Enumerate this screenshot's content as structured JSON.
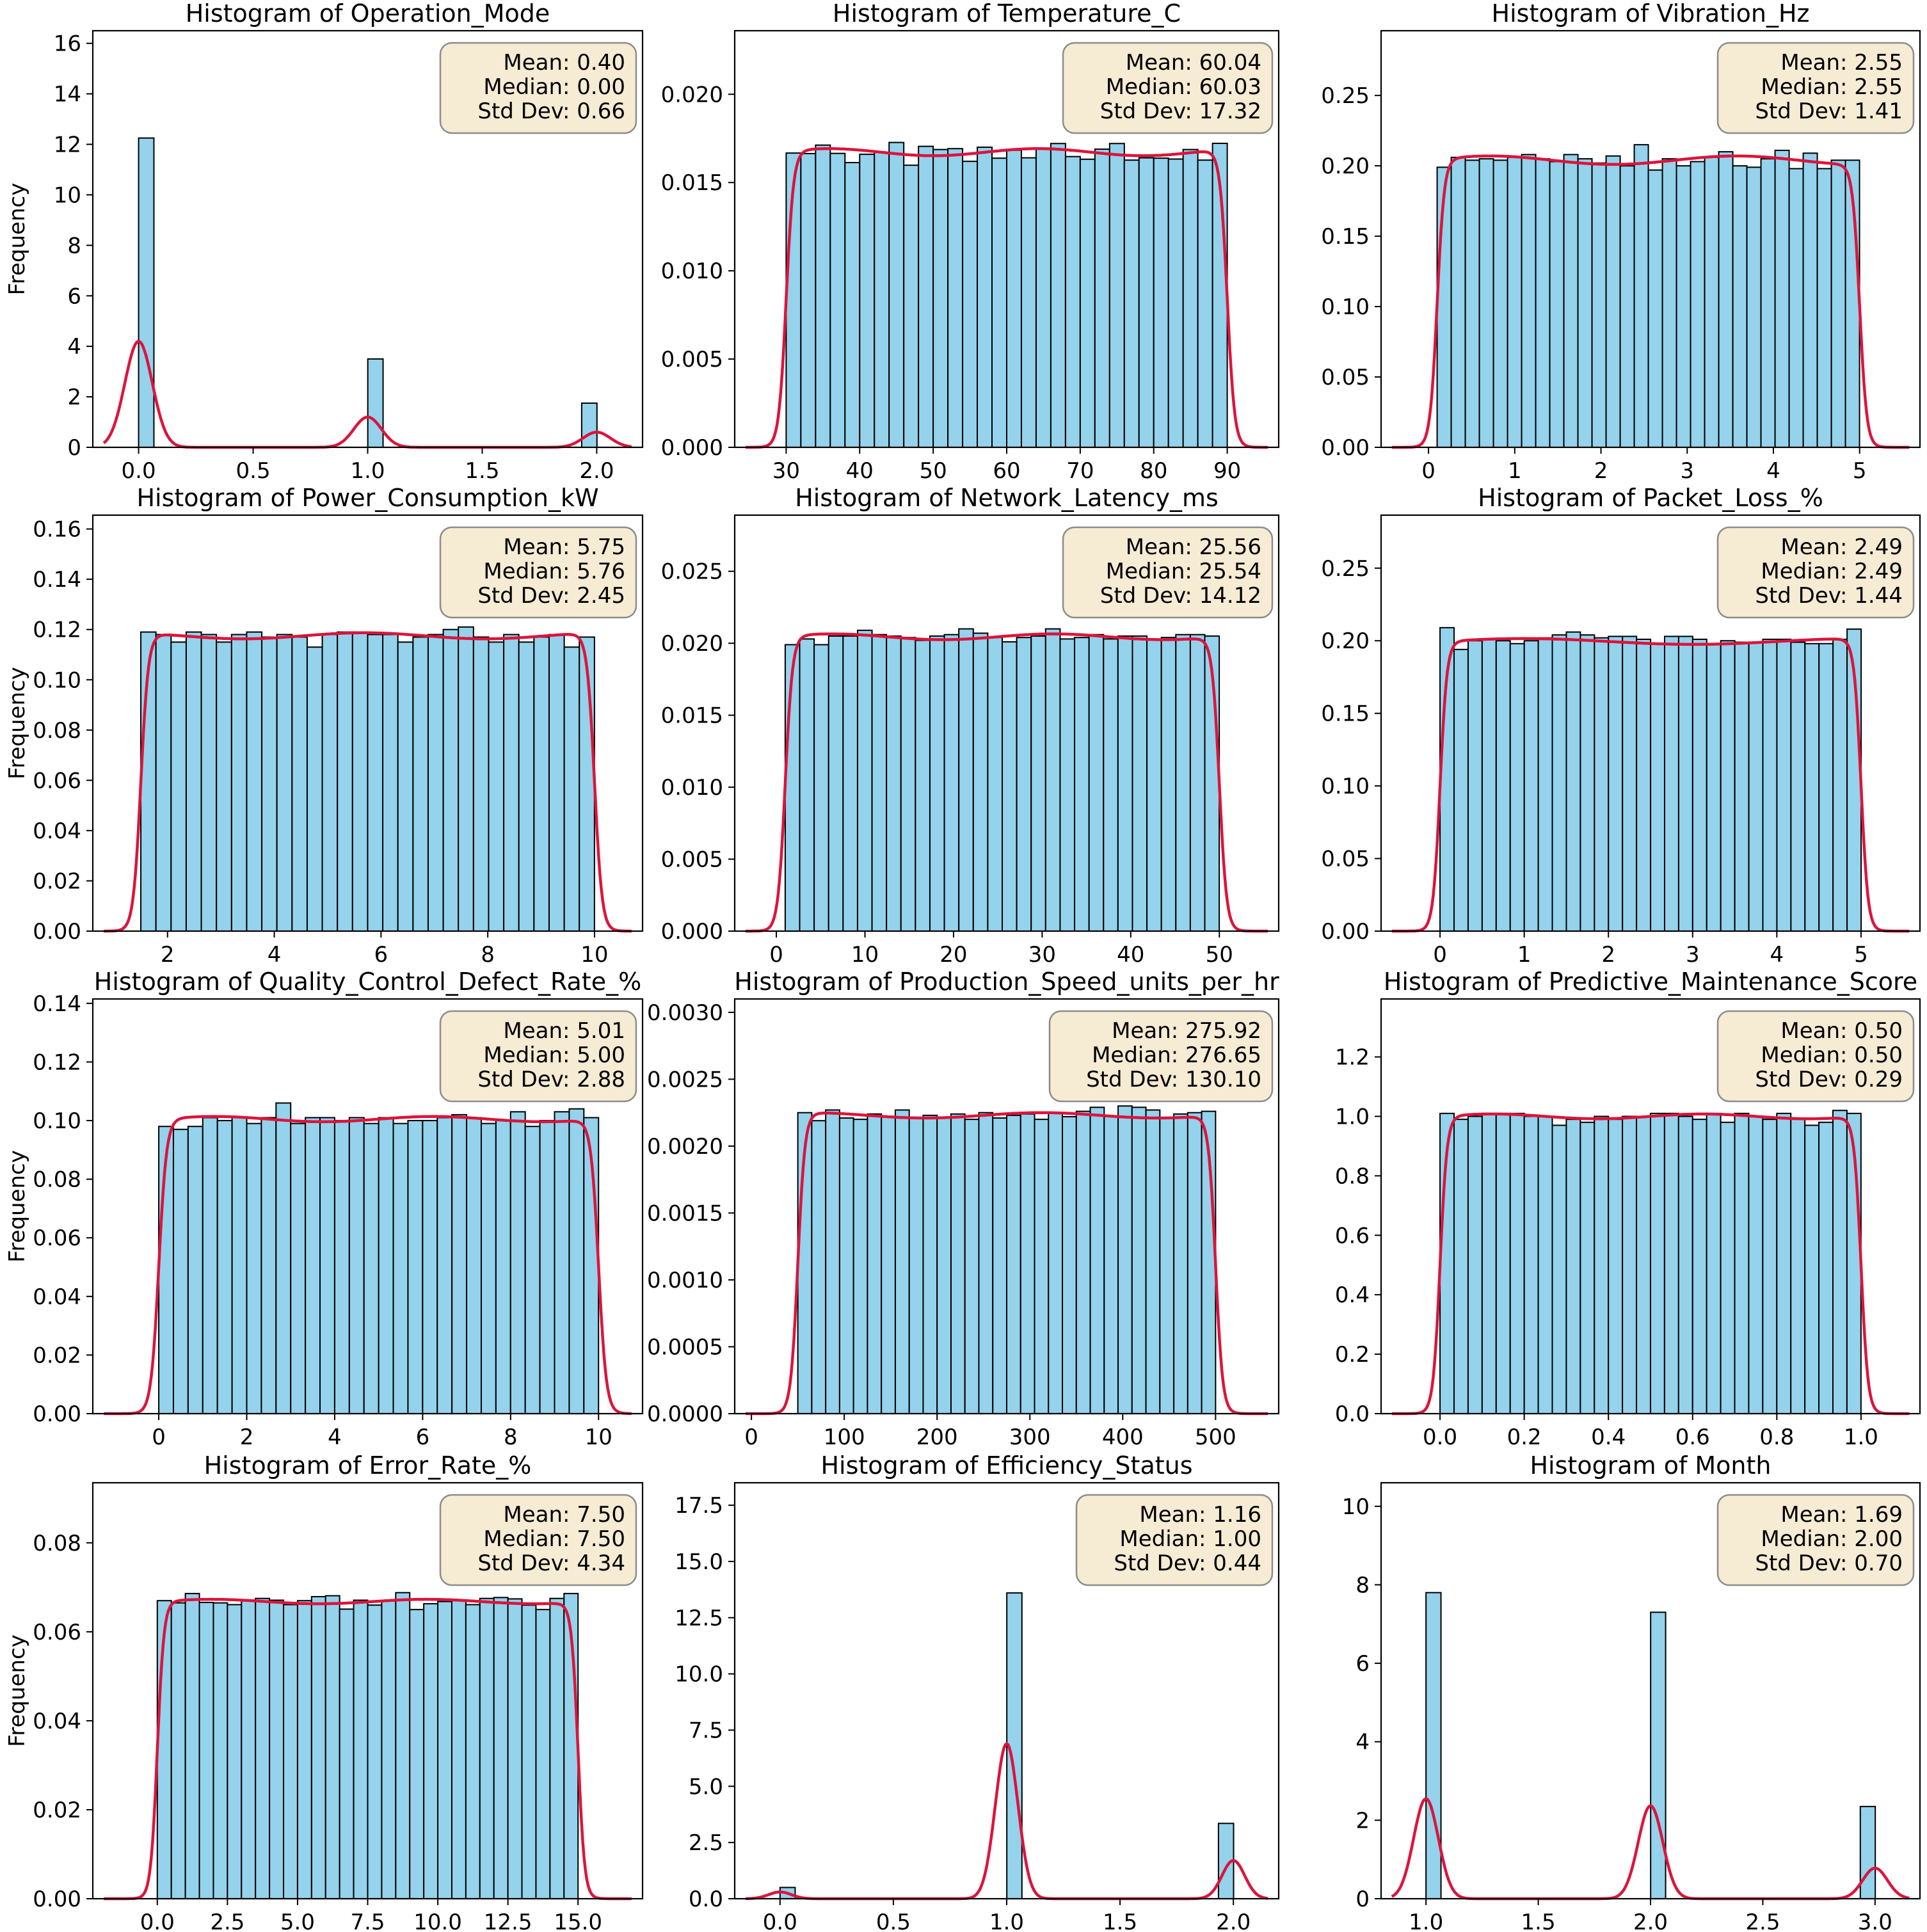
{
  "colors": {
    "bar_fill": "#95d2ec",
    "bar_edge": "#000000",
    "kde_line": "#dc143c",
    "stat_box_fill": "#f6ebd3",
    "stat_box_edge": "#8c8c8c"
  },
  "chart_data": [
    {
      "type": "bar",
      "title": "Histogram of Operation_Mode",
      "ylabel": "Frequency",
      "xlim": [
        -0.2,
        2.2
      ],
      "xticks": [
        0,
        0.5,
        1,
        1.5,
        2
      ],
      "xtick_labels": [
        "0.0",
        "0.5",
        "1.0",
        "1.5",
        "2.0"
      ],
      "ylim": [
        0,
        16.5
      ],
      "yticks": [
        0,
        2,
        4,
        6,
        8,
        10,
        12,
        14,
        16
      ],
      "ytick_labels": [
        "0",
        "2",
        "4",
        "6",
        "8",
        "10",
        "12",
        "14",
        "16"
      ],
      "bins": {
        "start": 0.0,
        "width": 0.0667,
        "values": [
          12.25,
          0,
          0,
          0,
          0,
          0,
          0,
          0,
          0,
          0,
          0,
          0,
          0,
          0,
          0,
          3.5,
          0,
          0,
          0,
          0,
          0,
          0,
          0,
          0,
          0,
          0,
          0,
          0,
          0,
          1.75
        ]
      },
      "kde": {
        "type": "peaks",
        "sigma": 0.06,
        "scale": 1,
        "peaks": [
          {
            "x": 0,
            "h": 4.2
          },
          {
            "x": 1,
            "h": 1.2
          },
          {
            "x": 2,
            "h": 0.6
          }
        ]
      },
      "stats": {
        "mean": "Mean: 0.40",
        "median": "Median: 0.00",
        "std": "Std Dev: 0.66"
      }
    },
    {
      "type": "bar",
      "title": "Histogram of Temperature_C",
      "ylabel": "",
      "xlim": [
        23,
        97
      ],
      "xticks": [
        30,
        40,
        50,
        60,
        70,
        80,
        90
      ],
      "xtick_labels": [
        "30",
        "40",
        "50",
        "60",
        "70",
        "80",
        "90"
      ],
      "ylim": [
        0,
        0.0236
      ],
      "yticks": [
        0,
        0.005,
        0.01,
        0.015,
        0.02
      ],
      "ytick_labels": [
        "0.000",
        "0.005",
        "0.010",
        "0.015",
        "0.020"
      ],
      "bins": {
        "start": 30,
        "width": 2.0,
        "values": [
          0.01667,
          0.01664,
          0.01712,
          0.01665,
          0.01613,
          0.0166,
          0.01671,
          0.01727,
          0.01598,
          0.01705,
          0.01687,
          0.01692,
          0.0162,
          0.017,
          0.01638,
          0.01683,
          0.0164,
          0.01695,
          0.01721,
          0.01647,
          0.01632,
          0.01689,
          0.01721,
          0.01627,
          0.0164,
          0.01638,
          0.01633,
          0.01687,
          0.01627,
          0.01722
        ]
      },
      "kde": {
        "type": "plateau",
        "a": 30,
        "b": 90,
        "h": 0.01672,
        "s": 0.85,
        "wav": 0.0002,
        "freq": 0.35
      },
      "stats": {
        "mean": "Mean: 60.04",
        "median": "Median: 60.03",
        "std": "Std Dev: 17.32"
      }
    },
    {
      "type": "bar",
      "title": "Histogram of Vibration_Hz",
      "ylabel": "",
      "xlim": [
        -0.55,
        5.7
      ],
      "xticks": [
        0,
        1,
        2,
        3,
        4,
        5
      ],
      "xtick_labels": [
        "0",
        "1",
        "2",
        "3",
        "4",
        "5"
      ],
      "ylim": [
        0,
        0.296
      ],
      "yticks": [
        0,
        0.05,
        0.1,
        0.15,
        0.2,
        0.25
      ],
      "ytick_labels": [
        "0.00",
        "0.05",
        "0.10",
        "0.15",
        "0.20",
        "0.25"
      ],
      "bins": {
        "start": 0.1,
        "width": 0.1633,
        "values": [
          0.199,
          0.206,
          0.204,
          0.205,
          0.204,
          0.206,
          0.208,
          0.205,
          0.203,
          0.208,
          0.205,
          0.202,
          0.207,
          0.2,
          0.215,
          0.197,
          0.205,
          0.2,
          0.203,
          0.206,
          0.21,
          0.2,
          0.199,
          0.205,
          0.211,
          0.198,
          0.209,
          0.198,
          0.204,
          0.204
        ]
      },
      "kde": {
        "type": "plateau",
        "a": 0.1,
        "b": 5.0,
        "h": 0.204,
        "s": 0.07,
        "wav": 0.003,
        "freq": 3.5
      },
      "stats": {
        "mean": "Mean: 2.55",
        "median": "Median: 2.55",
        "std": "Std Dev: 1.41"
      }
    },
    {
      "type": "bar",
      "title": "Histogram of Power_Consumption_kW",
      "ylabel": "Frequency",
      "xlim": [
        0.6,
        10.9
      ],
      "xticks": [
        2,
        4,
        6,
        8,
        10
      ],
      "xtick_labels": [
        "2",
        "4",
        "6",
        "8",
        "10"
      ],
      "ylim": [
        0,
        0.1655
      ],
      "yticks": [
        0,
        0.02,
        0.04,
        0.06,
        0.08,
        0.1,
        0.12,
        0.14,
        0.16
      ],
      "ytick_labels": [
        "0.00",
        "0.02",
        "0.04",
        "0.06",
        "0.08",
        "0.10",
        "0.12",
        "0.14",
        "0.16"
      ],
      "bins": {
        "start": 1.5,
        "width": 0.2833,
        "values": [
          0.119,
          0.118,
          0.115,
          0.119,
          0.118,
          0.115,
          0.118,
          0.119,
          0.117,
          0.118,
          0.117,
          0.113,
          0.118,
          0.119,
          0.119,
          0.118,
          0.118,
          0.115,
          0.117,
          0.118,
          0.12,
          0.121,
          0.117,
          0.115,
          0.118,
          0.115,
          0.117,
          0.118,
          0.113,
          0.117
        ]
      },
      "kde": {
        "type": "plateau",
        "a": 1.5,
        "b": 10.0,
        "h": 0.1175,
        "s": 0.12,
        "wav": 0.0012,
        "freq": 2.2
      },
      "stats": {
        "mean": "Mean: 5.75",
        "median": "Median: 5.76",
        "std": "Std Dev: 2.45"
      }
    },
    {
      "type": "bar",
      "title": "Histogram of Network_Latency_ms",
      "ylabel": "",
      "xlim": [
        -4.7,
        56.7
      ],
      "xticks": [
        0,
        10,
        20,
        30,
        40,
        50
      ],
      "xtick_labels": [
        "0",
        "10",
        "20",
        "30",
        "40",
        "50"
      ],
      "ylim": [
        0,
        0.0289
      ],
      "yticks": [
        0,
        0.005,
        0.01,
        0.015,
        0.02,
        0.025
      ],
      "ytick_labels": [
        "0.000",
        "0.005",
        "0.010",
        "0.015",
        "0.020",
        "0.025"
      ],
      "bins": {
        "start": 1.0,
        "width": 1.633,
        "values": [
          0.0199,
          0.0203,
          0.0199,
          0.0205,
          0.0205,
          0.0209,
          0.0206,
          0.0205,
          0.0204,
          0.0202,
          0.0205,
          0.0206,
          0.021,
          0.0207,
          0.0204,
          0.0201,
          0.0204,
          0.0205,
          0.021,
          0.0203,
          0.0204,
          0.0206,
          0.0203,
          0.0205,
          0.0205,
          0.0203,
          0.0204,
          0.0206,
          0.0206,
          0.0205
        ]
      },
      "kde": {
        "type": "plateau",
        "a": 1.0,
        "b": 50.0,
        "h": 0.02045,
        "s": 0.7,
        "wav": 0.0002,
        "freq": 0.4
      },
      "stats": {
        "mean": "Mean: 25.56",
        "median": "Median: 25.54",
        "std": "Std Dev: 14.12"
      }
    },
    {
      "type": "bar",
      "title": "Histogram of Packet_Loss_%",
      "ylabel": "",
      "xlim": [
        -0.7,
        5.7
      ],
      "xticks": [
        0,
        1,
        2,
        3,
        4,
        5
      ],
      "xtick_labels": [
        "0",
        "1",
        "2",
        "3",
        "4",
        "5"
      ],
      "ylim": [
        0,
        0.2865
      ],
      "yticks": [
        0,
        0.05,
        0.1,
        0.15,
        0.2,
        0.25
      ],
      "ytick_labels": [
        "0.00",
        "0.05",
        "0.10",
        "0.15",
        "0.20",
        "0.25"
      ],
      "bins": {
        "start": 0.0,
        "width": 0.1667,
        "values": [
          0.209,
          0.194,
          0.2,
          0.201,
          0.2,
          0.198,
          0.2,
          0.202,
          0.204,
          0.206,
          0.204,
          0.202,
          0.203,
          0.203,
          0.201,
          0.198,
          0.203,
          0.203,
          0.201,
          0.198,
          0.2,
          0.199,
          0.199,
          0.201,
          0.201,
          0.199,
          0.198,
          0.198,
          0.201,
          0.208
        ]
      },
      "kde": {
        "type": "plateau",
        "a": 0.0,
        "b": 5.0,
        "h": 0.1995,
        "s": 0.07,
        "wav": 0.002,
        "freq": 2.5
      },
      "stats": {
        "mean": "Mean: 2.49",
        "median": "Median: 2.49",
        "std": "Std Dev: 1.44"
      }
    },
    {
      "type": "bar",
      "title": "Histogram of Quality_Control_Defect_Rate_%",
      "ylabel": "Frequency",
      "xlim": [
        -1.5,
        11.0
      ],
      "xticks": [
        0,
        2,
        4,
        6,
        8,
        10
      ],
      "xtick_labels": [
        "0",
        "2",
        "4",
        "6",
        "8",
        "10"
      ],
      "ylim": [
        0,
        0.1415
      ],
      "yticks": [
        0,
        0.02,
        0.04,
        0.06,
        0.08,
        0.1,
        0.12,
        0.14
      ],
      "ytick_labels": [
        "0.00",
        "0.02",
        "0.04",
        "0.06",
        "0.08",
        "0.10",
        "0.12",
        "0.14"
      ],
      "bins": {
        "start": 0.0,
        "width": 0.3333,
        "values": [
          0.098,
          0.097,
          0.098,
          0.101,
          0.1,
          0.101,
          0.099,
          0.101,
          0.106,
          0.099,
          0.101,
          0.101,
          0.1,
          0.101,
          0.099,
          0.101,
          0.099,
          0.1,
          0.1,
          0.101,
          0.102,
          0.101,
          0.099,
          0.1,
          0.103,
          0.098,
          0.1,
          0.103,
          0.104,
          0.101
        ]
      },
      "kde": {
        "type": "plateau",
        "a": 0.0,
        "b": 10.0,
        "h": 0.1005,
        "s": 0.15,
        "wav": 0.0009,
        "freq": 2.0
      },
      "stats": {
        "mean": "Mean: 5.01",
        "median": "Median: 5.00",
        "std": "Std Dev: 2.88"
      }
    },
    {
      "type": "bar",
      "title": "Histogram of Production_Speed_units_per_hr",
      "ylabel": "",
      "xlim": [
        -18,
        568
      ],
      "xticks": [
        0,
        100,
        200,
        300,
        400,
        500
      ],
      "xtick_labels": [
        "0",
        "100",
        "200",
        "300",
        "400",
        "500"
      ],
      "ylim": [
        0,
        0.0031
      ],
      "yticks": [
        0,
        0.0005,
        0.001,
        0.0015,
        0.002,
        0.0025,
        0.003
      ],
      "ytick_labels": [
        "0.0000",
        "0.0005",
        "0.0010",
        "0.0015",
        "0.0020",
        "0.0025",
        "0.0030"
      ],
      "bins": {
        "start": 50,
        "width": 15.0,
        "values": [
          0.00225,
          0.00219,
          0.00227,
          0.00221,
          0.0022,
          0.00224,
          0.00222,
          0.00227,
          0.00221,
          0.00223,
          0.00221,
          0.00224,
          0.0022,
          0.00225,
          0.00221,
          0.00223,
          0.00224,
          0.0022,
          0.00225,
          0.00222,
          0.00226,
          0.00229,
          0.00222,
          0.0023,
          0.00229,
          0.00227,
          0.00221,
          0.00224,
          0.00225,
          0.00226
        ]
      },
      "kde": {
        "type": "plateau",
        "a": 50,
        "b": 500,
        "h": 0.00223,
        "s": 6.5,
        "wav": 2e-05,
        "freq": 0.04
      },
      "stats": {
        "mean": "Mean: 275.92",
        "median": "Median: 276.65",
        "std": "Std Dev: 130.10"
      }
    },
    {
      "type": "bar",
      "title": "Histogram of Predictive_Maintenance_Score",
      "ylabel": "",
      "xlim": [
        -0.14,
        1.14
      ],
      "xticks": [
        0,
        0.2,
        0.4,
        0.6,
        0.8,
        1.0
      ],
      "xtick_labels": [
        "0.0",
        "0.2",
        "0.4",
        "0.6",
        "0.8",
        "1.0"
      ],
      "ylim": [
        0,
        1.395
      ],
      "yticks": [
        0,
        0.2,
        0.4,
        0.6,
        0.8,
        1.0,
        1.2
      ],
      "ytick_labels": [
        "0.0",
        "0.2",
        "0.4",
        "0.6",
        "0.8",
        "1.0",
        "1.2"
      ],
      "bins": {
        "start": 0.0,
        "width": 0.03333,
        "values": [
          1.01,
          0.99,
          1.0,
          1.01,
          1.01,
          1.01,
          1.0,
          1.0,
          0.97,
          0.99,
          0.98,
          1.0,
          0.99,
          1.0,
          1.0,
          1.01,
          1.01,
          1.0,
          0.99,
          1.01,
          0.98,
          1.01,
          1.0,
          0.99,
          1.01,
          0.99,
          0.97,
          0.98,
          1.02,
          1.01
        ]
      },
      "kde": {
        "type": "plateau",
        "a": 0.0,
        "b": 1.0,
        "h": 1.0,
        "s": 0.014,
        "wav": 0.008,
        "freq": 20
      },
      "stats": {
        "mean": "Mean: 0.50",
        "median": "Median: 0.50",
        "std": "Std Dev: 0.29"
      }
    },
    {
      "type": "bar",
      "title": "Histogram of Error_Rate_%",
      "ylabel": "Frequency",
      "xlim": [
        -2.3,
        17.3
      ],
      "xticks": [
        0,
        2.5,
        5,
        7.5,
        10,
        12.5,
        15
      ],
      "xtick_labels": [
        "0.0",
        "2.5",
        "5.0",
        "7.5",
        "10.0",
        "12.5",
        "15.0"
      ],
      "ylim": [
        0,
        0.0935
      ],
      "yticks": [
        0,
        0.02,
        0.04,
        0.06,
        0.08
      ],
      "ytick_labels": [
        "0.00",
        "0.02",
        "0.04",
        "0.06",
        "0.08"
      ],
      "bins": {
        "start": 0.0,
        "width": 0.5,
        "values": [
          0.067,
          0.0665,
          0.0686,
          0.0666,
          0.0665,
          0.0661,
          0.067,
          0.0675,
          0.0671,
          0.0661,
          0.067,
          0.0679,
          0.0681,
          0.0651,
          0.0671,
          0.066,
          0.0671,
          0.0688,
          0.065,
          0.0663,
          0.0668,
          0.067,
          0.0661,
          0.0675,
          0.0677,
          0.0674,
          0.066,
          0.065,
          0.0675,
          0.0686
        ]
      },
      "kde": {
        "type": "plateau",
        "a": 0.0,
        "b": 15.0,
        "h": 0.0668,
        "s": 0.2,
        "wav": 0.0005,
        "freq": 1.3
      },
      "stats": {
        "mean": "Mean: 7.50",
        "median": "Median: 7.50",
        "std": "Std Dev: 4.34"
      }
    },
    {
      "type": "bar",
      "title": "Histogram of Efficiency_Status",
      "ylabel": "",
      "xlim": [
        -0.2,
        2.2
      ],
      "xticks": [
        0,
        0.5,
        1,
        1.5,
        2
      ],
      "xtick_labels": [
        "0.0",
        "0.5",
        "1.0",
        "1.5",
        "2.0"
      ],
      "ylim": [
        0,
        18.5
      ],
      "yticks": [
        0,
        2.5,
        5,
        7.5,
        10,
        12.5,
        15,
        17.5
      ],
      "ytick_labels": [
        "0.0",
        "2.5",
        "5.0",
        "7.5",
        "10.0",
        "12.5",
        "15.0",
        "17.5"
      ],
      "bins": {
        "start": 0.0,
        "width": 0.0667,
        "values": [
          0.5,
          0,
          0,
          0,
          0,
          0,
          0,
          0,
          0,
          0,
          0,
          0,
          0,
          0,
          0,
          13.6,
          0,
          0,
          0,
          0,
          0,
          0,
          0,
          0,
          0,
          0,
          0,
          0,
          0,
          3.35
        ]
      },
      "kde": {
        "type": "peaks",
        "sigma": 0.05,
        "scale": 1,
        "peaks": [
          {
            "x": 0,
            "h": 0.3
          },
          {
            "x": 1,
            "h": 6.9
          },
          {
            "x": 2,
            "h": 1.7
          }
        ]
      },
      "stats": {
        "mean": "Mean: 1.16",
        "median": "Median: 1.00",
        "std": "Std Dev: 0.44"
      }
    },
    {
      "type": "bar",
      "title": "Histogram of Month",
      "ylabel": "",
      "xlim": [
        0.8,
        3.2
      ],
      "xticks": [
        1,
        1.5,
        2,
        2.5,
        3
      ],
      "xtick_labels": [
        "1.0",
        "1.5",
        "2.0",
        "2.5",
        "3.0"
      ],
      "ylim": [
        0,
        10.6
      ],
      "yticks": [
        0,
        2,
        4,
        6,
        8,
        10
      ],
      "ytick_labels": [
        "0",
        "2",
        "4",
        "6",
        "8",
        "10"
      ],
      "bins": {
        "start": 1.0,
        "width": 0.0667,
        "values": [
          7.8,
          0,
          0,
          0,
          0,
          0,
          0,
          0,
          0,
          0,
          0,
          0,
          0,
          0,
          0,
          7.3,
          0,
          0,
          0,
          0,
          0,
          0,
          0,
          0,
          0,
          0,
          0,
          0,
          0,
          2.35
        ]
      },
      "kde": {
        "type": "peaks",
        "sigma": 0.055,
        "scale": 1,
        "peaks": [
          {
            "x": 1,
            "h": 2.55
          },
          {
            "x": 2,
            "h": 2.37
          },
          {
            "x": 3,
            "h": 0.78
          }
        ]
      },
      "stats": {
        "mean": "Mean: 1.69",
        "median": "Median: 2.00",
        "std": "Std Dev: 0.70"
      }
    }
  ]
}
